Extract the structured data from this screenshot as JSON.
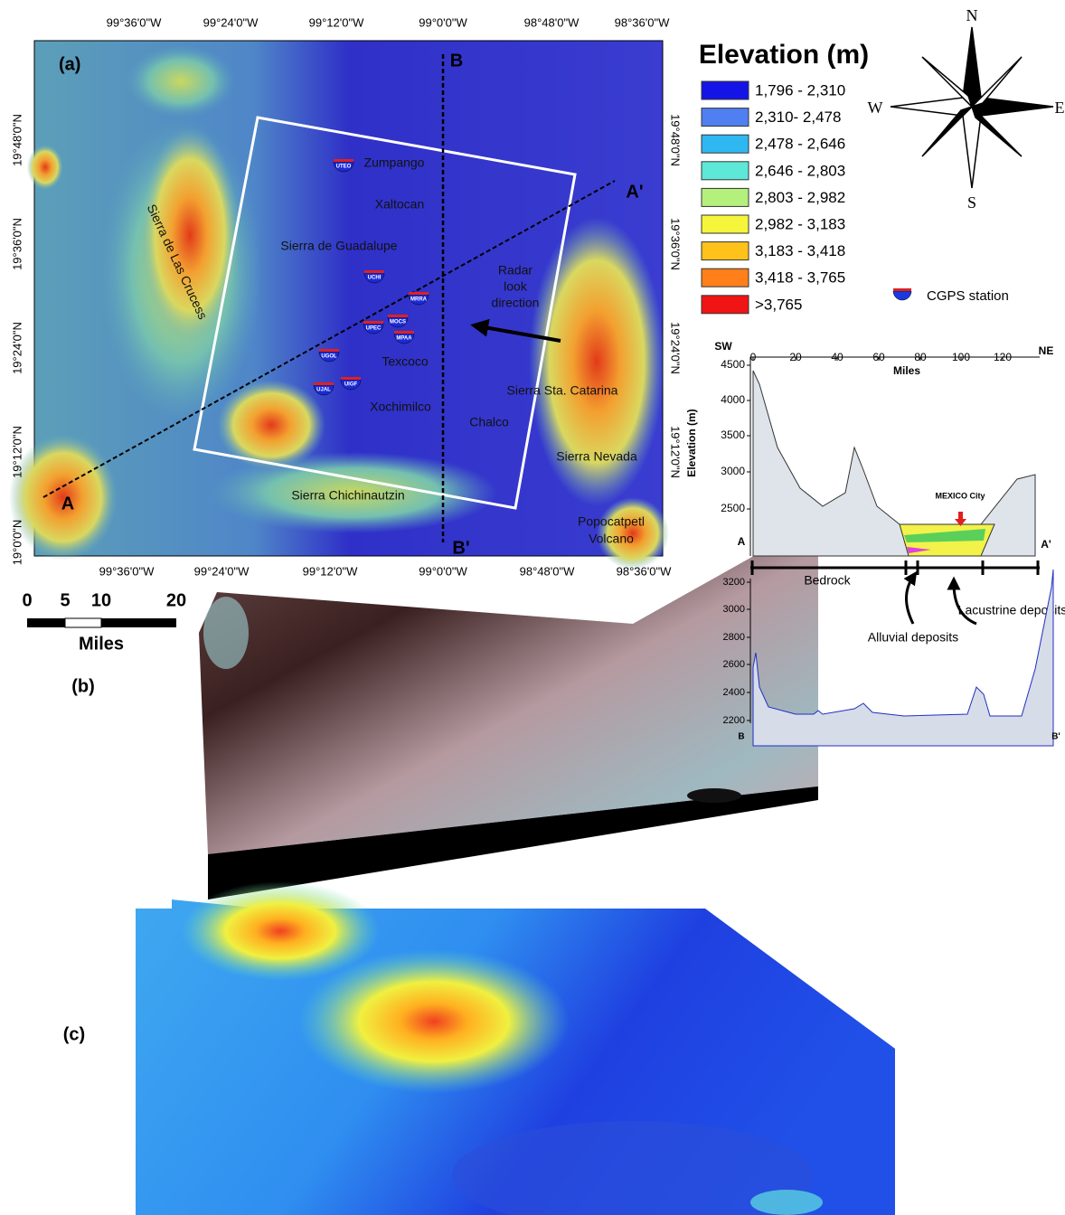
{
  "panel_a": {
    "label": "(a)",
    "top_lon_labels": [
      "99°36'0\"W",
      "99°24'0\"W",
      "99°12'0\"W",
      "99°0'0\"W",
      "98°48'0\"W",
      "98°36'0\"W"
    ],
    "bottom_lon_labels": [
      "99°36'0\"W",
      "99°24'0\"W",
      "99°12'0\"W",
      "99°0'0\"W",
      "98°48'0\"W",
      "98°36'0\"W"
    ],
    "left_lat_labels": [
      "19°48'0\"N",
      "19°36'0\"N",
      "19°24'0\"N",
      "19°12'0\"N",
      "19°0'0\"N"
    ],
    "right_lat_labels": [
      "19°48'0\"N",
      "19°36'0\"N",
      "19°24'0\"N",
      "19°12'0\"N"
    ],
    "places": [
      "Zumpango",
      "Xaltocan",
      "Sierra de Guadalupe",
      "Texcoco",
      "Sierra Sta. Catarina",
      "Xochimilco",
      "Chalco",
      "Sierra Nevada",
      "Sierra Chichinautzin",
      "Popocatpetl",
      "Volcano",
      "Sierra de Las Crucess"
    ],
    "radar_label": [
      "Radar",
      "look",
      "direction"
    ],
    "stations": [
      "UTEO",
      "UCHI",
      "MRRA",
      "UPEC",
      "MOCS",
      "MPAA",
      "UGOL",
      "UIGF",
      "UJAL"
    ],
    "profile_ends": [
      "A",
      "A'",
      "B",
      "B'"
    ]
  },
  "legend": {
    "title": "Elevation (m)",
    "classes": [
      {
        "label": "1,796 - 2,310",
        "color": "#1414e6"
      },
      {
        "label": "2,310- 2,478",
        "color": "#4f7ff0"
      },
      {
        "label": "2,478 - 2,646",
        "color": "#2fb7f2"
      },
      {
        "label": "2,646 - 2,803",
        "color": "#5ee8d8"
      },
      {
        "label": "2,803 - 2,982",
        "color": "#b4f07c"
      },
      {
        "label": "2,982 - 3,183",
        "color": "#f5f53c"
      },
      {
        "label": "3,183 - 3,418",
        "color": "#ffc21a"
      },
      {
        "label": "3,418 - 3,765",
        "color": "#ff7f1a"
      },
      {
        "label": ">3,765",
        "color": "#f01414"
      }
    ],
    "station_label": "CGPS station"
  },
  "compass": {
    "north": "N",
    "east": "E",
    "south": "S",
    "west": "W"
  },
  "scale_bar": {
    "ticks": [
      "0",
      "5",
      "10",
      "20"
    ],
    "unit": "Miles"
  },
  "profile_aa": {
    "left_end": "SW",
    "right_end": "NE",
    "x_axis_label": "Miles",
    "x_ticks": [
      "0",
      "20",
      "40",
      "60",
      "80",
      "100",
      "120"
    ],
    "y_axis_label": "Elevation (m)",
    "y_ticks": [
      "4500",
      "4000",
      "3500",
      "3000",
      "2500"
    ],
    "start": "A",
    "end": "A'",
    "city_label": "MEXICO City",
    "units": [
      "Bedrock",
      "Alluvial deposits",
      "Lacustrine deposits"
    ]
  },
  "profile_bb": {
    "y_ticks": [
      "3200",
      "3000",
      "2800",
      "2600",
      "2400",
      "2200"
    ],
    "start": "B",
    "end": "B'"
  },
  "panel_b": {
    "label": "(b)"
  },
  "panel_c": {
    "label": "(c)"
  }
}
